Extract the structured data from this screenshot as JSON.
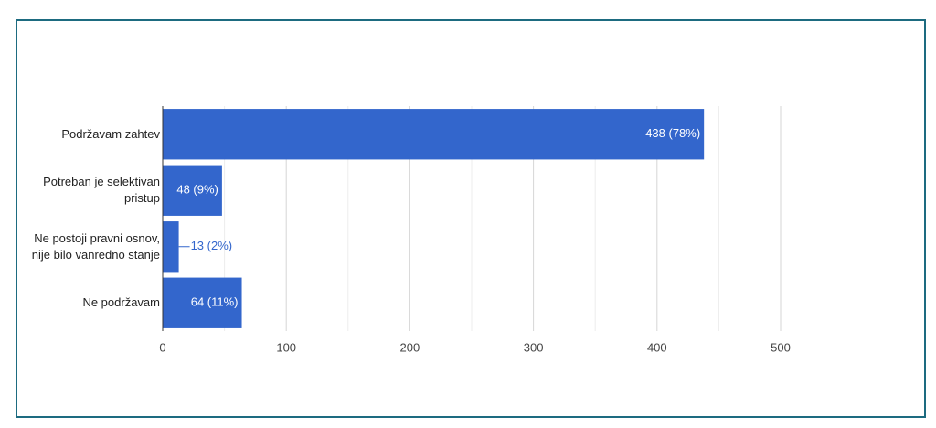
{
  "chart_data": {
    "type": "hbar",
    "categories": [
      "Podržavam zahtev",
      "Potreban je selektivan pristup",
      "Ne postoji pravni osnov, nije bilo vanredno stanje",
      "Ne podržavam"
    ],
    "values": [
      438,
      48,
      13,
      64
    ],
    "value_labels": [
      "438 (78%)",
      "48 (9%)",
      "13 (2%)",
      "64 (11%)"
    ],
    "color": "#3366cc",
    "xlim": [
      0,
      500
    ],
    "xticks": [
      0,
      100,
      200,
      300,
      400,
      500
    ],
    "x_minor_ticks": [
      50,
      150,
      250,
      350,
      450
    ],
    "grid": true
  }
}
